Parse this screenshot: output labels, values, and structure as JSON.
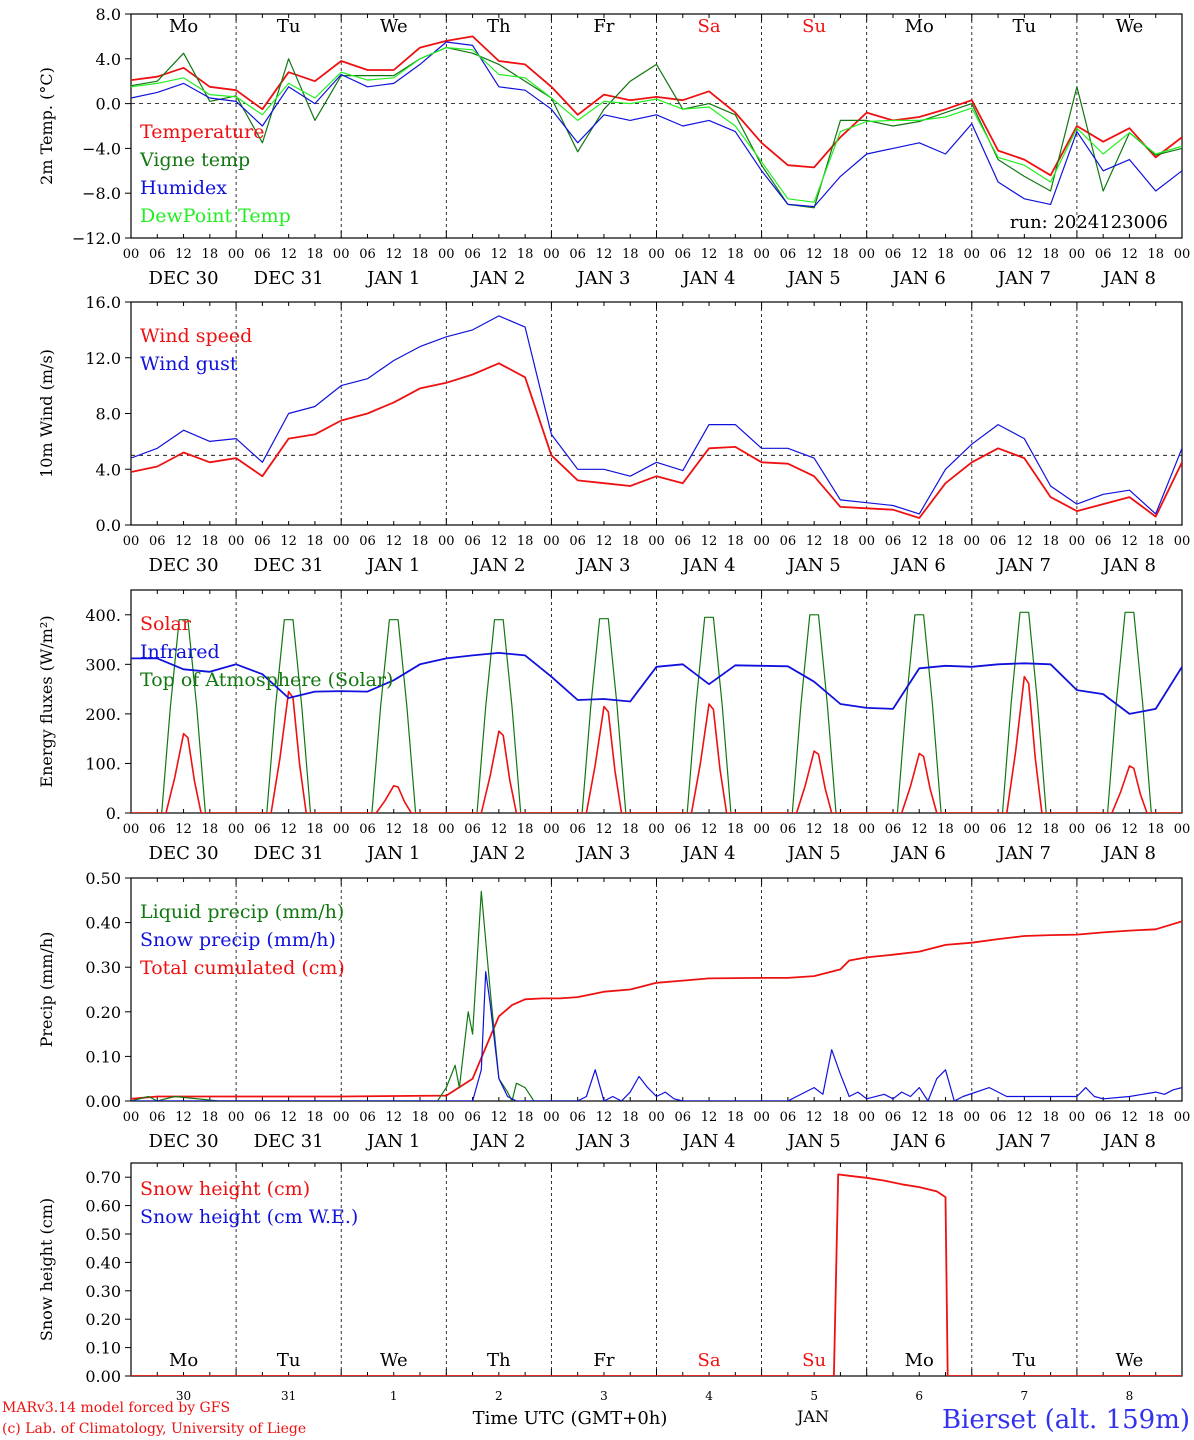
{
  "footer": {
    "credit1": "MARv3.14 model forced by GFS",
    "credit2": "(c) Lab. of Climatology, University of Liege",
    "xaxis_title": "Time UTC (GMT+0h)",
    "month": "JAN",
    "station": "Bierset (alt. 159m)"
  },
  "colors": {
    "red": "#ee1111",
    "green": "#117711",
    "blue": "#1111dd",
    "lightgreen": "#22ee22",
    "weekend": "#ee1111"
  },
  "days": {
    "weekdays": [
      "Mo",
      "Tu",
      "We",
      "Th",
      "Fr",
      "Sa",
      "Su",
      "Mo",
      "Tu",
      "We"
    ],
    "weekend_flags": [
      false,
      false,
      false,
      false,
      false,
      true,
      true,
      false,
      false,
      false
    ],
    "date_labels": [
      "DEC 30",
      "DEC 31",
      "JAN  1",
      "JAN  2",
      "JAN  3",
      "JAN  4",
      "JAN  5",
      "JAN  6",
      "JAN  7",
      "JAN  8"
    ],
    "day_numbers": [
      "30",
      "31",
      "1",
      "2",
      "3",
      "4",
      "5",
      "6",
      "7",
      "8"
    ],
    "hour_labels": [
      "00",
      "06",
      "12",
      "18"
    ],
    "final_hour_label": "00"
  },
  "chart_data": [
    {
      "type": "line",
      "ylabel": "2m Temp. (°C)",
      "ylim": [
        -12,
        8
      ],
      "yticks": [
        "8.0",
        "4.0",
        "0.0",
        "−4.0",
        "−8.0",
        "−12.0"
      ],
      "ytick_values": [
        8,
        4,
        0,
        -4,
        -8,
        -12
      ],
      "ref_line": 0,
      "annotation": "run: 2024123006",
      "legend": [
        "Temperature",
        "Vigne temp",
        "Humidex",
        "DewPoint Temp"
      ],
      "series_colors": [
        "red",
        "green",
        "blue",
        "lightgreen"
      ],
      "x_hours": [
        0,
        6,
        12,
        18,
        24,
        30,
        36,
        42,
        48,
        54,
        60,
        66,
        72,
        78,
        84,
        90,
        96,
        102,
        108,
        114,
        120,
        126,
        132,
        138,
        144,
        150,
        156,
        162,
        168,
        174,
        180,
        186,
        192,
        198,
        204,
        210,
        216,
        222,
        228,
        234,
        240
      ],
      "series": [
        {
          "name": "Temperature",
          "values": [
            2.1,
            2.4,
            3.2,
            1.5,
            1.2,
            -0.5,
            2.8,
            2.0,
            3.8,
            3.0,
            3.0,
            5.0,
            5.6,
            6.0,
            3.8,
            3.5,
            1.5,
            -1.0,
            0.8,
            0.3,
            0.6,
            0.3,
            1.1,
            -0.8,
            -3.5,
            -5.5,
            -5.7,
            -3.0,
            -0.8,
            -1.5,
            -1.2,
            -0.5,
            0.3,
            -4.2,
            -5.0,
            -6.4,
            -2.0,
            -3.4,
            -2.2,
            -4.8,
            -3.0
          ]
        },
        {
          "name": "Vigne temp",
          "values": [
            1.6,
            2.0,
            4.5,
            0.2,
            0.7,
            -3.5,
            4.0,
            -1.5,
            2.5,
            2.5,
            2.5,
            4.0,
            5.0,
            4.5,
            3.5,
            2.0,
            0.5,
            -4.3,
            -0.5,
            2.0,
            3.5,
            -0.5,
            0.0,
            -1.0,
            -5.5,
            -9.0,
            -9.3,
            -1.5,
            -1.5,
            -2.0,
            -1.6,
            -0.8,
            0.0,
            -5.0,
            -6.5,
            -7.8,
            1.5,
            -7.8,
            -2.6,
            -4.6,
            -4.0
          ]
        },
        {
          "name": "Humidex",
          "values": [
            0.5,
            1.0,
            1.8,
            0.5,
            0.2,
            -2.0,
            1.5,
            0.0,
            2.6,
            1.5,
            1.8,
            3.5,
            5.5,
            5.2,
            1.5,
            1.2,
            -0.5,
            -3.5,
            -1.0,
            -1.5,
            -1.0,
            -2.0,
            -1.5,
            -2.5,
            -6.0,
            -9.0,
            -9.2,
            -6.5,
            -4.5,
            -4.0,
            -3.5,
            -4.5,
            -1.8,
            -7.0,
            -8.5,
            -9.0,
            -2.5,
            -6.0,
            -5.0,
            -7.8,
            -6.0
          ]
        },
        {
          "name": "DewPoint Temp",
          "values": [
            1.5,
            1.8,
            2.3,
            0.8,
            0.6,
            -1.0,
            1.8,
            0.5,
            2.8,
            2.1,
            2.3,
            4.0,
            5.0,
            4.8,
            2.6,
            2.3,
            0.5,
            -1.5,
            0.2,
            0.0,
            0.4,
            -0.5,
            -0.3,
            -2.0,
            -5.2,
            -8.5,
            -8.8,
            -2.5,
            -1.6,
            -1.5,
            -1.5,
            -1.2,
            -0.4,
            -4.8,
            -5.5,
            -7.0,
            -2.2,
            -4.5,
            -2.6,
            -4.5,
            -3.8
          ]
        }
      ]
    },
    {
      "type": "line",
      "ylabel": "10m Wind (m/s)",
      "ylim": [
        0,
        16
      ],
      "yticks": [
        "16.0",
        "12.0",
        "8.0",
        "4.0",
        "0.0"
      ],
      "ytick_values": [
        16,
        12,
        8,
        4,
        0
      ],
      "ref_line": 5,
      "legend": [
        "Wind speed",
        "Wind gust"
      ],
      "series_colors": [
        "red",
        "blue"
      ],
      "x_hours": [
        0,
        6,
        12,
        18,
        24,
        30,
        36,
        42,
        48,
        54,
        60,
        66,
        72,
        78,
        84,
        90,
        96,
        102,
        108,
        114,
        120,
        126,
        132,
        138,
        144,
        150,
        156,
        162,
        168,
        174,
        180,
        186,
        192,
        198,
        204,
        210,
        216,
        222,
        228,
        234,
        240
      ],
      "series": [
        {
          "name": "Wind speed",
          "values": [
            3.8,
            4.2,
            5.2,
            4.5,
            4.8,
            3.5,
            6.2,
            6.5,
            7.5,
            8.0,
            8.8,
            9.8,
            10.2,
            10.8,
            11.6,
            10.6,
            5.0,
            3.2,
            3.0,
            2.8,
            3.5,
            3.0,
            5.5,
            5.6,
            4.5,
            4.4,
            3.5,
            1.3,
            1.2,
            1.1,
            0.5,
            3.0,
            4.5,
            5.5,
            4.8,
            2.0,
            1.0,
            1.5,
            2.0,
            0.6,
            4.5
          ]
        },
        {
          "name": "Wind gust",
          "values": [
            4.8,
            5.5,
            6.8,
            6.0,
            6.2,
            4.5,
            8.0,
            8.5,
            10.0,
            10.5,
            11.8,
            12.8,
            13.5,
            14.0,
            15.0,
            14.2,
            6.5,
            4.0,
            4.0,
            3.5,
            4.5,
            3.9,
            7.2,
            7.2,
            5.5,
            5.5,
            4.8,
            1.8,
            1.6,
            1.4,
            0.8,
            4.0,
            5.8,
            7.2,
            6.2,
            2.8,
            1.5,
            2.2,
            2.5,
            0.8,
            5.5
          ]
        }
      ]
    },
    {
      "type": "line",
      "ylabel": "Energy fluxes (W/m²)",
      "ylim": [
        0,
        450
      ],
      "yticks": [
        "400.",
        "300.",
        "200.",
        "100.",
        "0."
      ],
      "ytick_values": [
        400,
        300,
        200,
        100,
        0
      ],
      "legend": [
        "Solar",
        "Infrared",
        "Top of Atmosphere (Solar)"
      ],
      "series_colors": [
        "red",
        "blue",
        "green"
      ],
      "solar_peaks": [
        160,
        245,
        55,
        165,
        215,
        220,
        125,
        120,
        275,
        95
      ],
      "toa_peaks": [
        390,
        390,
        390,
        390,
        392,
        395,
        400,
        400,
        405,
        405
      ],
      "series": [
        {
          "name": "Infrared",
          "x": [
            0,
            6,
            12,
            18,
            24,
            30,
            36,
            42,
            48,
            54,
            60,
            66,
            72,
            78,
            84,
            90,
            96,
            102,
            108,
            114,
            120,
            126,
            132,
            138,
            144,
            150,
            156,
            162,
            168,
            174,
            180,
            186,
            192,
            198,
            204,
            210,
            216,
            222,
            228,
            234,
            240
          ],
          "values": [
            312,
            312,
            290,
            285,
            300,
            280,
            232,
            245,
            246,
            245,
            268,
            300,
            312,
            318,
            323,
            318,
            275,
            228,
            230,
            225,
            295,
            300,
            260,
            298,
            297,
            296,
            265,
            220,
            212,
            210,
            292,
            297,
            295,
            300,
            302,
            300,
            248,
            240,
            200,
            210,
            295
          ]
        }
      ]
    },
    {
      "type": "line",
      "ylabel": "Precip (mm/h)",
      "ylim": [
        0,
        0.5
      ],
      "yticks": [
        "0.50",
        "0.40",
        "0.30",
        "0.20",
        "0.10",
        "0.00"
      ],
      "ytick_values": [
        0.5,
        0.4,
        0.3,
        0.2,
        0.1,
        0
      ],
      "legend": [
        "Liquid precip (mm/h)",
        "Snow precip (mm/h)",
        "Total cumulated (cm)"
      ],
      "series_colors": [
        "green",
        "blue",
        "red"
      ],
      "series": [
        {
          "name": "Total cumulated (cm)",
          "x": [
            0,
            6,
            24,
            48,
            72,
            78,
            81,
            84,
            87,
            90,
            94,
            98,
            102,
            108,
            114,
            120,
            126,
            132,
            144,
            150,
            156,
            162,
            164,
            168,
            174,
            180,
            186,
            192,
            198,
            204,
            210,
            216,
            222,
            228,
            234,
            240
          ],
          "values": [
            0.005,
            0.01,
            0.01,
            0.01,
            0.012,
            0.05,
            0.12,
            0.19,
            0.215,
            0.228,
            0.23,
            0.23,
            0.233,
            0.245,
            0.25,
            0.265,
            0.27,
            0.275,
            0.276,
            0.276,
            0.28,
            0.295,
            0.315,
            0.322,
            0.328,
            0.335,
            0.35,
            0.355,
            0.363,
            0.37,
            0.372,
            0.373,
            0.378,
            0.382,
            0.385,
            0.403
          ]
        },
        {
          "name": "Liquid precip (mm/h)",
          "x": [
            0,
            4,
            6,
            10,
            20,
            70,
            72,
            74,
            75,
            77,
            78,
            80,
            82,
            84,
            86,
            87,
            88,
            90,
            92,
            94,
            96,
            98,
            102
          ],
          "values": [
            0.0,
            0.01,
            0.0,
            0.01,
            0.0,
            0.0,
            0.03,
            0.08,
            0.03,
            0.2,
            0.15,
            0.47,
            0.25,
            0.05,
            0.02,
            0.0,
            0.04,
            0.03,
            0.0,
            0.0,
            0.0,
            0.0,
            0.0
          ]
        },
        {
          "name": "Snow precip (mm/h)",
          "x": [
            0,
            78,
            80,
            81,
            82,
            84,
            86,
            88,
            102,
            104,
            106,
            108,
            110,
            112,
            114,
            116,
            118,
            120,
            122,
            124,
            126,
            150,
            152,
            156,
            158,
            160,
            162,
            164,
            166,
            168,
            172,
            174,
            176,
            178,
            180,
            182,
            184,
            186,
            188,
            190,
            196,
            200,
            204,
            216,
            218,
            220,
            222,
            228,
            234,
            236,
            238,
            240
          ],
          "values": [
            0.0,
            0.0,
            0.07,
            0.29,
            0.22,
            0.05,
            0.01,
            0.0,
            0.0,
            0.01,
            0.07,
            0.0,
            0.01,
            0.0,
            0.02,
            0.055,
            0.03,
            0.01,
            0.02,
            0.005,
            0.0,
            0.0,
            0.01,
            0.03,
            0.015,
            0.115,
            0.06,
            0.01,
            0.02,
            0.005,
            0.015,
            0.005,
            0.02,
            0.01,
            0.03,
            0.0,
            0.05,
            0.07,
            0.0,
            0.01,
            0.03,
            0.01,
            0.01,
            0.01,
            0.03,
            0.01,
            0.005,
            0.01,
            0.02,
            0.015,
            0.025,
            0.03
          ]
        }
      ]
    },
    {
      "type": "line",
      "ylabel": "Snow height (cm)",
      "ylim": [
        0,
        0.75
      ],
      "yticks": [
        "0.70",
        "0.60",
        "0.50",
        "0.40",
        "0.30",
        "0.20",
        "0.10",
        "0.00"
      ],
      "ytick_values": [
        0.7,
        0.6,
        0.5,
        0.4,
        0.3,
        0.2,
        0.1,
        0
      ],
      "legend": [
        "Snow height (cm)",
        "Snow height (cm W.E.)"
      ],
      "series_colors": [
        "red",
        "blue"
      ],
      "series": [
        {
          "name": "Snow height (cm)",
          "x": [
            0,
            160.5,
            161.5,
            164,
            168,
            172,
            176,
            180,
            184,
            186,
            186.5,
            240
          ],
          "values": [
            0,
            0,
            0.71,
            0.705,
            0.698,
            0.688,
            0.675,
            0.665,
            0.65,
            0.63,
            0,
            0
          ]
        }
      ]
    }
  ]
}
